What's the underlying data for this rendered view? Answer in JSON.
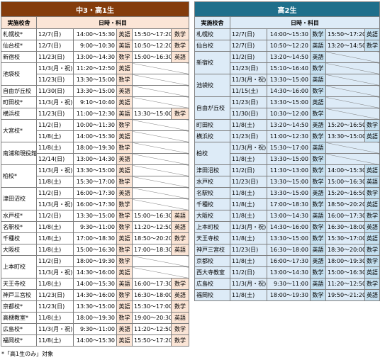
{
  "tables": [
    {
      "title": "中3・高1生",
      "headers": [
        "実施校舎",
        "日時・科目"
      ],
      "rows": [
        {
          "school": "札幌校*",
          "sessions": [
            [
              "12/7(日)",
              "14:00～15:30",
              "英語",
              "15:50～17:20",
              "数学"
            ]
          ]
        },
        {
          "school": "仙台校*",
          "sessions": [
            [
              "12/7(日)",
              "9:00～10:30",
              "英語",
              "10:50～12:20",
              "数学"
            ]
          ]
        },
        {
          "school": "新宿校",
          "sessions": [
            [
              "11/23(日)",
              "13:00～14:30",
              "数学",
              "15:00～16:30",
              "英語"
            ]
          ]
        },
        {
          "school": "池袋校",
          "sessions": [
            [
              "11/3(月・祝)",
              "11:20～12:50",
              "英語"
            ],
            [
              "11/23(日)",
              "13:30～15:00",
              "数学"
            ]
          ]
        },
        {
          "school": "自由が丘校",
          "sessions": [
            [
              "11/30(日)",
              "13:30～15:00",
              "英語"
            ]
          ]
        },
        {
          "school": "町田校*",
          "sessions": [
            [
              "11/3(月・祝)",
              "9:10～10:40",
              "英語"
            ]
          ]
        },
        {
          "school": "横浜校",
          "sessions": [
            [
              "11/23(日)",
              "11:00～12:30",
              "英語",
              "13:30～15:00",
              "数学"
            ]
          ]
        },
        {
          "school": "大宮校*",
          "sessions": [
            [
              "11/2(日)",
              "10:00～11:30",
              "数学"
            ],
            [
              "11/8(土)",
              "14:00～15:30",
              "英語"
            ]
          ]
        },
        {
          "school": "南浦和現役館",
          "sessions": [
            [
              "11/8(土)",
              "18:00～19:30",
              "数学"
            ],
            [
              "12/14(日)",
              "13:00～14:30",
              "英語"
            ]
          ]
        },
        {
          "school": "柏校*",
          "sessions": [
            [
              "11/3(月・祝)",
              "13:30～15:00",
              "英語"
            ],
            [
              "11/8(土)",
              "15:30～17:00",
              "数学"
            ]
          ]
        },
        {
          "school": "津田沼校",
          "sessions": [
            [
              "11/2(日)",
              "16:00～17:30",
              "英語"
            ],
            [
              "11/3(月・祝)",
              "16:00～17:30",
              "数学"
            ]
          ]
        },
        {
          "school": "水戸校*",
          "sessions": [
            [
              "11/2(日)",
              "13:30～15:00",
              "数学",
              "15:00～16:30",
              "英語"
            ]
          ]
        },
        {
          "school": "名駅校*",
          "sessions": [
            [
              "11/8(土)",
              "9:30～11:00",
              "数学",
              "11:20～12:50",
              "英語"
            ]
          ]
        },
        {
          "school": "千種校",
          "sessions": [
            [
              "11/8(土)",
              "17:00～18:30",
              "英語",
              "18:50～20:20",
              "数学"
            ]
          ]
        },
        {
          "school": "大阪校",
          "sessions": [
            [
              "11/8(土)",
              "15:00～16:30",
              "数学",
              "17:00～18:30",
              "英語"
            ]
          ]
        },
        {
          "school": "上本町校",
          "sessions": [
            [
              "11/2(日)",
              "18:00～19:30",
              "数学"
            ],
            [
              "11/3(月・祝)",
              "14:30～16:00",
              "英語"
            ]
          ]
        },
        {
          "school": "天王寺校",
          "sessions": [
            [
              "11/8(土)",
              "14:00～15:30",
              "英語",
              "16:00～17:30",
              "数学"
            ]
          ]
        },
        {
          "school": "神戸三宮校",
          "sessions": [
            [
              "11/23(日)",
              "14:30～16:00",
              "数学",
              "16:30～18:00",
              "英語"
            ]
          ]
        },
        {
          "school": "京都校*",
          "sessions": [
            [
              "11/23(日)",
              "13:30～15:00",
              "英語",
              "15:30～17:00",
              "数学"
            ]
          ]
        },
        {
          "school": "高槻教室*",
          "sessions": [
            [
              "11/8(土)",
              "18:00～19:30",
              "数学",
              "19:00～20:30",
              "英語"
            ]
          ]
        },
        {
          "school": "広島校*",
          "sessions": [
            [
              "11/3(月・祝)",
              "9:30～11:00",
              "英語",
              "11:20～12:50",
              "数学"
            ]
          ]
        },
        {
          "school": "福岡校*",
          "sessions": [
            [
              "11/8(土)",
              "14:00～15:30",
              "英語",
              "15:50～17:20",
              "数学"
            ]
          ]
        }
      ]
    },
    {
      "title": "高2生",
      "headers": [
        "実施校舎",
        "日時・科目"
      ],
      "rows": [
        {
          "school": "札幌校",
          "sessions": [
            [
              "12/7(日)",
              "14:00～15:30",
              "数学",
              "15:50～17:20",
              "英語"
            ]
          ]
        },
        {
          "school": "仙台校",
          "sessions": [
            [
              "12/7(日)",
              "10:50～12:20",
              "英語",
              "13:20～14:50",
              "数学"
            ]
          ]
        },
        {
          "school": "新宿校",
          "sessions": [
            [
              "11/2(日)",
              "13:20～14:50",
              "英語"
            ],
            [
              "11/23(日)",
              "15:10～16:40",
              "数学"
            ]
          ]
        },
        {
          "school": "池袋校",
          "sessions": [
            [
              "11/3(月・祝)",
              "13:30～15:00",
              "英語"
            ],
            [
              "11/15(土)",
              "14:30～16:00",
              "数学"
            ]
          ]
        },
        {
          "school": "自由が丘校",
          "sessions": [
            [
              "11/23(日)",
              "13:30～15:00",
              "英語"
            ],
            [
              "11/30(日)",
              "10:30～12:00",
              "数学"
            ]
          ]
        },
        {
          "school": "町田校",
          "sessions": [
            [
              "11/8(土)",
              "13:20～14:50",
              "英語",
              "15:20～16:50",
              "数学"
            ]
          ]
        },
        {
          "school": "横浜校",
          "sessions": [
            [
              "11/23(日)",
              "11:00～12:30",
              "数学",
              "13:30～15:00",
              "英語"
            ]
          ]
        },
        {
          "school": "柏校",
          "sessions": [
            [
              "11/3(月・祝)",
              "15:30～17:00",
              "英語"
            ],
            [
              "11/8(土)",
              "13:30～15:00",
              "数学"
            ]
          ]
        },
        {
          "school": "津田沼校",
          "sessions": [
            [
              "11/2(日)",
              "11:30～13:00",
              "数学",
              "14:00～15:30",
              "英語"
            ]
          ]
        },
        {
          "school": "水戸校",
          "sessions": [
            [
              "11/23(日)",
              "13:30～15:00",
              "数学",
              "15:00～16:30",
              "英語"
            ]
          ]
        },
        {
          "school": "名駅校",
          "sessions": [
            [
              "11/8(土)",
              "13:30～15:00",
              "英語",
              "15:20～16:50",
              "数学"
            ]
          ]
        },
        {
          "school": "千種校",
          "sessions": [
            [
              "11/8(土)",
              "17:00～18:30",
              "数学",
              "18:50～20:20",
              "英語"
            ]
          ]
        },
        {
          "school": "大阪校",
          "sessions": [
            [
              "11/8(土)",
              "13:00～14:30",
              "英語",
              "16:00～17:30",
              "数学"
            ]
          ]
        },
        {
          "school": "上本町校",
          "sessions": [
            [
              "11/3(月・祝)",
              "14:30～16:00",
              "数学",
              "16:30～18:00",
              "英語"
            ]
          ]
        },
        {
          "school": "天王寺校",
          "sessions": [
            [
              "11/8(土)",
              "13:30～15:00",
              "数学",
              "15:30～17:00",
              "英語"
            ]
          ]
        },
        {
          "school": "神戸三宮校",
          "sessions": [
            [
              "11/23(日)",
              "16:30～18:00",
              "英語",
              "18:30～20:00",
              "数学"
            ]
          ]
        },
        {
          "school": "京都校",
          "sessions": [
            [
              "11/8(土)",
              "16:00～17:30",
              "英語",
              "18:00～19:30",
              "数学"
            ]
          ]
        },
        {
          "school": "西大寺教室",
          "sessions": [
            [
              "11/2(日)",
              "13:00～14:30",
              "数学",
              "15:00～16:30",
              "英語"
            ]
          ]
        },
        {
          "school": "広島校",
          "sessions": [
            [
              "11/3(月・祝)",
              "9:30～11:00",
              "英語",
              "11:20～12:50",
              "数学"
            ]
          ]
        },
        {
          "school": "福岡校",
          "sessions": [
            [
              "11/8(土)",
              "18:00～19:30",
              "数学",
              "19:50～21:20",
              "英語"
            ]
          ]
        }
      ]
    }
  ],
  "footnote": "*「高1生のみ」対象"
}
